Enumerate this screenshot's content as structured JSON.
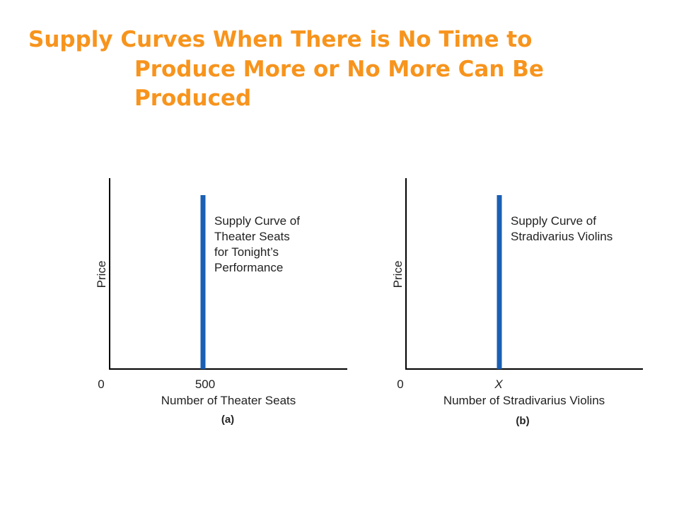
{
  "title": {
    "lines": [
      "Supply Curves When There is No Time to",
      "Produce More or No More Can Be",
      "Produced"
    ],
    "color": "#f7941d"
  },
  "chart_data": [
    {
      "type": "line",
      "panel_label": "(a)",
      "xlabel": "Number of Theater Seats",
      "ylabel": "Price",
      "origin_label": "0",
      "x_tick_label": "500",
      "series": [
        {
          "name": "Supply Curve of Theater Seats for Tonight's Performance",
          "label_lines": [
            "Supply Curve of",
            "Theater Seats",
            "for Tonight’s",
            "Performance"
          ],
          "x_value": 500,
          "shape": "vertical",
          "color": "#1a5fb4"
        }
      ],
      "grid": false
    },
    {
      "type": "line",
      "panel_label": "(b)",
      "xlabel": "Number of Stradivarius Violins",
      "ylabel": "Price",
      "origin_label": "0",
      "x_tick_label": "X",
      "series": [
        {
          "name": "Supply Curve of Stradivarius Violins",
          "label_lines": [
            "Supply Curve of",
            "Stradivarius Violins"
          ],
          "x_value": "X",
          "shape": "vertical",
          "color": "#1a5fb4"
        }
      ],
      "grid": false
    }
  ]
}
